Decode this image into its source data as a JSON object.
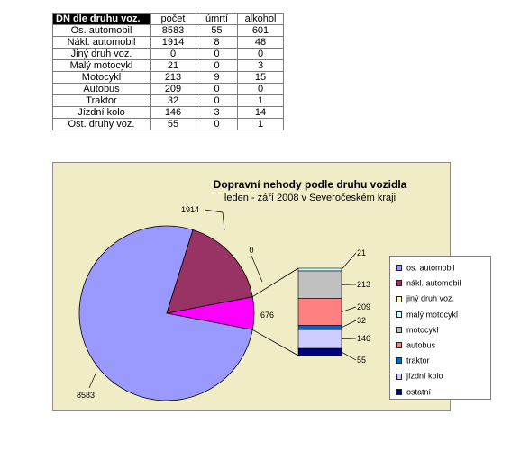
{
  "table": {
    "header": [
      "DN dle druhu voz.",
      "počet",
      "úmrtí",
      "alkohol"
    ],
    "rows": [
      [
        "Os. automobil",
        "8583",
        "55",
        "601"
      ],
      [
        "Nákl. automobil",
        "1914",
        "8",
        "48"
      ],
      [
        "Jiný druh voz.",
        "0",
        "0",
        "0"
      ],
      [
        "Malý motocykl",
        "21",
        "0",
        "3"
      ],
      [
        "Motocykl",
        "213",
        "9",
        "15"
      ],
      [
        "Autobus",
        "209",
        "0",
        "0"
      ],
      [
        "Traktor",
        "32",
        "0",
        "1"
      ],
      [
        "Jízdní kolo",
        "146",
        "3",
        "14"
      ],
      [
        "Ost. druhy voz.",
        "55",
        "0",
        "1"
      ]
    ]
  },
  "chart_data": {
    "type": "pie",
    "subtype": "bar-of-pie",
    "title": "Dopravní nehody podle druhu vozidla",
    "subtitle": "leden - září 2008 v Severočeském kraji",
    "legend_position": "right",
    "pie_labels": [
      {
        "text": "8583"
      },
      {
        "text": "1914"
      },
      {
        "text": "0"
      },
      {
        "text": "676"
      }
    ],
    "bar_labels": [
      {
        "text": "21"
      },
      {
        "text": "213"
      },
      {
        "text": "209"
      },
      {
        "text": "32"
      },
      {
        "text": "146"
      },
      {
        "text": "55"
      }
    ],
    "series": [
      {
        "name": "os. automobil",
        "value": 8583,
        "color": "#9999ff",
        "in_pie": true
      },
      {
        "name": "nákl. automobil",
        "value": 1914,
        "color": "#993366",
        "in_pie": true
      },
      {
        "name": "jiný druh voz.",
        "value": 0,
        "color": "#ffffcc",
        "in_pie": true
      },
      {
        "name": "malý motocykl",
        "value": 21,
        "color": "#ccffff",
        "in_pie": false
      },
      {
        "name": "motocykl",
        "value": 213,
        "color": "#c0c0c0",
        "in_pie": false
      },
      {
        "name": "autobus",
        "value": 209,
        "color": "#ff8080",
        "in_pie": false
      },
      {
        "name": "traktor",
        "value": 32,
        "color": "#0066cc",
        "in_pie": false
      },
      {
        "name": "jízdní kolo",
        "value": 146,
        "color": "#ccccff",
        "in_pie": false
      },
      {
        "name": "ostatní",
        "value": 55,
        "color": "#000080",
        "in_pie": false
      }
    ],
    "other_slice": {
      "value": 676,
      "color": "#ff00ff"
    }
  }
}
